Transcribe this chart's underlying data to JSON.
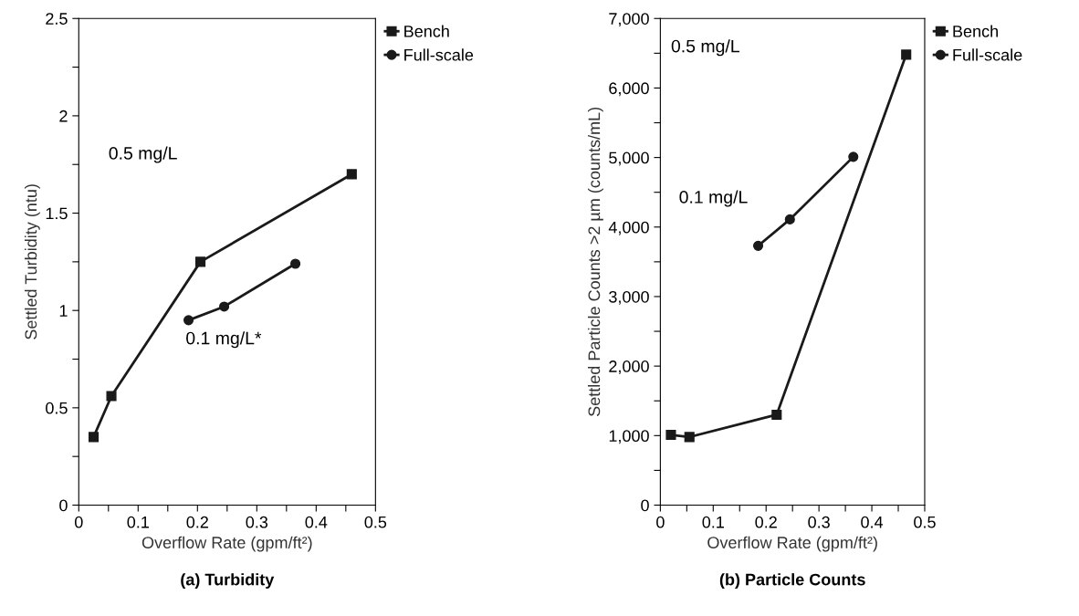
{
  "chart_data": [
    {
      "type": "line",
      "title": "(a) Turbidity",
      "xlabel": "Overflow Rate (gpm/ft²)",
      "ylabel": "Settled Turbidity (ntu)",
      "series": [
        {
          "name": "Bench",
          "color": "#1a1a1a",
          "marker": "square",
          "x": [
            0.025,
            0.055,
            0.205,
            0.46
          ],
          "values": [
            0.35,
            0.56,
            1.25,
            1.7
          ]
        },
        {
          "name": "Full-scale",
          "color": "#1a1a1a",
          "marker": "circle",
          "x": [
            0.185,
            0.245,
            0.365
          ],
          "values": [
            0.95,
            1.02,
            1.24
          ]
        }
      ],
      "xlim": [
        0,
        0.5
      ],
      "xticks": [
        0,
        {
          "value": 0.05,
          "label": null
        },
        0.1,
        {
          "value": 0.15,
          "label": null
        },
        0.2,
        {
          "value": 0.25,
          "label": null
        },
        0.3,
        {
          "value": 0.35,
          "label": null
        },
        0.4,
        {
          "value": 0.45,
          "label": null
        },
        0.5
      ],
      "ylim": [
        0,
        2.5
      ],
      "yticks": [
        0,
        {
          "value": 0.25,
          "label": null
        },
        0.5,
        {
          "value": 0.75,
          "label": null
        },
        1,
        {
          "value": 1.25,
          "label": null
        },
        1.5,
        {
          "value": 1.75,
          "label": null
        },
        2,
        {
          "value": 2.25,
          "label": null
        },
        2.5
      ],
      "annotations": [
        "0.5 mg/L",
        "0.1 mg/L*"
      ],
      "grid": false,
      "legend": "top right",
      "line_style": "solid"
    },
    {
      "type": "line",
      "title": "(b) Particle Counts",
      "xlabel": "Overflow Rate (gpm/ft²)",
      "ylabel": "Settled Particle Counts >2 µm (counts/mL)",
      "series": [
        {
          "name": "Bench",
          "color": "#1a1a1a",
          "marker": "square",
          "x": [
            0.02,
            0.055,
            0.22,
            0.465
          ],
          "values": [
            1010,
            980,
            1300,
            6480
          ]
        },
        {
          "name": "Full-scale",
          "color": "#1a1a1a",
          "marker": "circle",
          "x": [
            0.185,
            0.245,
            0.365
          ],
          "values": [
            3730,
            4110,
            5010
          ]
        }
      ],
      "xlim": [
        0,
        0.5
      ],
      "xticks": [
        0,
        {
          "value": 0.05,
          "label": null
        },
        0.1,
        {
          "value": 0.15,
          "label": null
        },
        0.2,
        {
          "value": 0.25,
          "label": null
        },
        0.3,
        {
          "value": 0.35,
          "label": null
        },
        0.4,
        {
          "value": 0.45,
          "label": null
        },
        0.5
      ],
      "ylim": [
        0,
        7000
      ],
      "yticks": [
        0,
        {
          "value": 500,
          "label": null
        },
        {
          "value": 1000,
          "label": "1,000"
        },
        {
          "value": 1500,
          "label": null
        },
        {
          "value": 2000,
          "label": "2,000"
        },
        {
          "value": 2500,
          "label": null
        },
        {
          "value": 3000,
          "label": "3,000"
        },
        {
          "value": 3500,
          "label": null
        },
        {
          "value": 4000,
          "label": "4,000"
        },
        {
          "value": 4500,
          "label": null
        },
        {
          "value": 5000,
          "label": "5,000"
        },
        {
          "value": 5500,
          "label": null
        },
        {
          "value": 6000,
          "label": "6,000"
        },
        {
          "value": 6500,
          "label": null
        },
        {
          "value": 7000,
          "label": "7,000"
        }
      ],
      "annotations": [
        "0.5 mg/L",
        "0.1 mg/L"
      ],
      "grid": false,
      "legend": "top right",
      "line_style": "solid"
    }
  ]
}
